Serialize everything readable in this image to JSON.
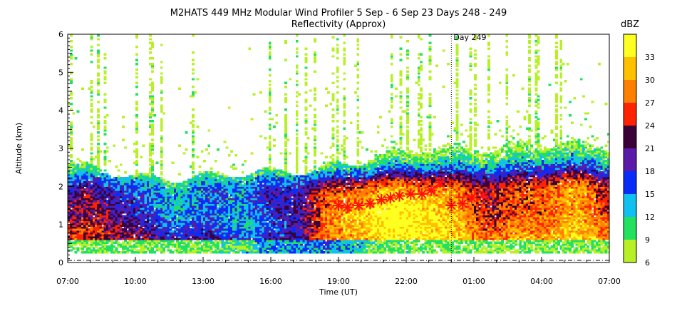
{
  "chart_data": {
    "type": "heatmap",
    "title": "M2HATS 449 MHz Modular Wind Profiler   5 Sep -  6 Sep 23 Days 248 - 249",
    "subtitle": "Reflectivity (Approx)",
    "xlabel": "Time (UT)",
    "ylabel": "Altitude (km)",
    "x_ticks": [
      "07:00",
      "10:00",
      "13:00",
      "16:00",
      "19:00",
      "22:00",
      "01:00",
      "04:00",
      "07:00"
    ],
    "x_range_hours": [
      0,
      24
    ],
    "y_ticks": [
      "0",
      "1",
      "2",
      "3",
      "4",
      "5",
      "6"
    ],
    "ylim": [
      0,
      6
    ],
    "annotation": {
      "text": "Day 249",
      "x_hours": 17
    },
    "colorbar": {
      "label": "dBZ",
      "levels": [
        6,
        9,
        12,
        15,
        18,
        21,
        24,
        27,
        30,
        33
      ],
      "tick_labels": [
        "6",
        "9",
        "12",
        "15",
        "18",
        "21",
        "24",
        "27",
        "30",
        "33"
      ],
      "colors": [
        "#b8f028",
        "#22e060",
        "#10c0f0",
        "#0a2cf8",
        "#5a1ca8",
        "#3a0038",
        "#ff2200",
        "#ff8000",
        "#ffc000",
        "#ffff20"
      ]
    },
    "boundary_layer_height_markers": {
      "x_hours": [
        12.0,
        12.4,
        12.9,
        13.4,
        13.9,
        14.3,
        14.7,
        15.2,
        15.7,
        16.1,
        16.5,
        17.0,
        17.5,
        17.9,
        18.4
      ],
      "altitude_km": [
        1.5,
        1.45,
        1.5,
        1.55,
        1.65,
        1.7,
        1.75,
        1.8,
        1.8,
        1.9,
        2.1,
        1.5,
        1.55,
        1.7,
        1.75
      ]
    }
  }
}
